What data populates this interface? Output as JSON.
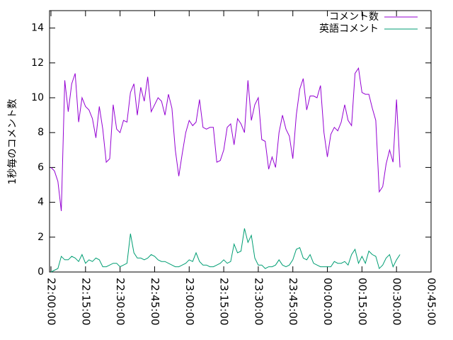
{
  "chart_data": {
    "type": "line",
    "y_label": "1秒毎のコメント数",
    "x": [
      "22:00:00",
      "22:01:30",
      "22:03:00",
      "22:04:30",
      "22:06:00",
      "22:07:30",
      "22:09:00",
      "22:10:30",
      "22:12:00",
      "22:13:30",
      "22:15:00",
      "22:16:30",
      "22:18:00",
      "22:19:30",
      "22:21:00",
      "22:22:30",
      "22:24:00",
      "22:25:30",
      "22:27:00",
      "22:28:30",
      "22:30:00",
      "22:31:30",
      "22:33:00",
      "22:34:30",
      "22:36:00",
      "22:37:30",
      "22:39:00",
      "22:40:30",
      "22:42:00",
      "22:43:30",
      "22:45:00",
      "22:46:30",
      "22:48:00",
      "22:49:30",
      "22:51:00",
      "22:52:30",
      "22:54:00",
      "22:55:30",
      "22:57:00",
      "22:58:30",
      "23:00:00",
      "23:01:30",
      "23:03:00",
      "23:04:30",
      "23:06:00",
      "23:07:30",
      "23:09:00",
      "23:10:30",
      "23:12:00",
      "23:13:30",
      "23:15:00",
      "23:16:30",
      "23:18:00",
      "23:19:30",
      "23:21:00",
      "23:22:30",
      "23:24:00",
      "23:25:30",
      "23:27:00",
      "23:28:30",
      "23:30:00",
      "23:31:30",
      "23:33:00",
      "23:34:30",
      "23:36:00",
      "23:37:30",
      "23:39:00",
      "23:40:30",
      "23:42:00",
      "23:43:30",
      "23:45:00",
      "23:46:30",
      "23:48:00",
      "23:49:30",
      "23:51:00",
      "23:52:30",
      "23:54:00",
      "23:55:30",
      "23:57:00",
      "23:58:30",
      "00:00:00",
      "00:01:30",
      "00:03:00",
      "00:04:30",
      "00:06:00",
      "00:07:30",
      "00:09:00",
      "00:10:30",
      "00:12:00",
      "00:13:30",
      "00:15:00",
      "00:16:30",
      "00:18:00",
      "00:19:30",
      "00:21:00",
      "00:22:30",
      "00:24:00",
      "00:25:30",
      "00:27:00",
      "00:28:30",
      "00:30:00",
      "00:31:30"
    ],
    "series": [
      {
        "name": "コメント数",
        "color": "#9400d3",
        "values": [
          6.0,
          5.8,
          5.2,
          3.5,
          11.0,
          9.2,
          10.8,
          11.4,
          8.6,
          10.0,
          9.5,
          9.3,
          8.8,
          7.7,
          9.5,
          8.2,
          6.3,
          6.5,
          9.6,
          8.2,
          8.0,
          8.7,
          8.6,
          10.3,
          10.8,
          9.0,
          10.6,
          9.8,
          11.2,
          9.2,
          9.6,
          10.0,
          9.8,
          9.0,
          10.2,
          9.4,
          7.0,
          5.5,
          6.8,
          8.0,
          8.7,
          8.4,
          8.6,
          9.9,
          8.3,
          8.2,
          8.3,
          8.3,
          6.3,
          6.4,
          7.0,
          8.3,
          8.5,
          7.3,
          8.8,
          8.5,
          8.0,
          11.0,
          8.7,
          9.6,
          10.0,
          7.6,
          7.5,
          5.9,
          6.6,
          6.0,
          8.0,
          9.0,
          8.2,
          7.8,
          6.5,
          9.0,
          10.5,
          11.1,
          9.3,
          10.1,
          10.1,
          10.0,
          10.7,
          8.0,
          6.6,
          7.9,
          8.3,
          8.1,
          8.6,
          9.6,
          8.7,
          8.4,
          11.4,
          11.7,
          10.3,
          10.2,
          10.2,
          9.4,
          8.7,
          4.6,
          4.9,
          6.2,
          7.0,
          6.3,
          9.9,
          6.0
        ]
      },
      {
        "name": "英語コメント",
        "color": "#009e73",
        "values": [
          0.0,
          0.1,
          0.2,
          0.9,
          0.7,
          0.7,
          0.9,
          0.8,
          0.6,
          1.0,
          0.5,
          0.7,
          0.6,
          0.8,
          0.7,
          0.3,
          0.3,
          0.4,
          0.5,
          0.5,
          0.3,
          0.4,
          0.5,
          2.2,
          1.1,
          0.8,
          0.8,
          0.7,
          0.8,
          1.0,
          0.9,
          0.7,
          0.6,
          0.6,
          0.5,
          0.4,
          0.3,
          0.3,
          0.4,
          0.5,
          0.7,
          0.6,
          1.1,
          0.6,
          0.4,
          0.4,
          0.3,
          0.3,
          0.4,
          0.5,
          0.7,
          0.5,
          0.6,
          1.6,
          1.1,
          1.2,
          2.5,
          1.7,
          2.1,
          0.8,
          0.4,
          0.4,
          0.2,
          0.3,
          0.3,
          0.4,
          0.7,
          0.4,
          0.3,
          0.4,
          0.7,
          1.3,
          1.4,
          0.8,
          0.7,
          1.0,
          0.5,
          0.4,
          0.3,
          0.3,
          0.3,
          0.3,
          0.6,
          0.5,
          0.5,
          0.6,
          0.4,
          1.0,
          1.3,
          0.5,
          0.9,
          0.5,
          1.2,
          1.0,
          0.9,
          0.2,
          0.4,
          0.8,
          1.0,
          0.3,
          0.7,
          1.0
        ]
      }
    ],
    "xlim": [
      "22:00:00",
      "00:45:00"
    ],
    "xticks": [
      "22:00:00",
      "22:15:00",
      "22:30:00",
      "22:45:00",
      "23:00:00",
      "23:15:00",
      "23:30:00",
      "23:45:00",
      "00:00:00",
      "00:15:00",
      "00:30:00",
      "00:45:00"
    ],
    "ylim": [
      0,
      15
    ],
    "yticks": [
      0,
      2,
      4,
      6,
      8,
      10,
      12,
      14
    ],
    "legend": "top-right"
  }
}
